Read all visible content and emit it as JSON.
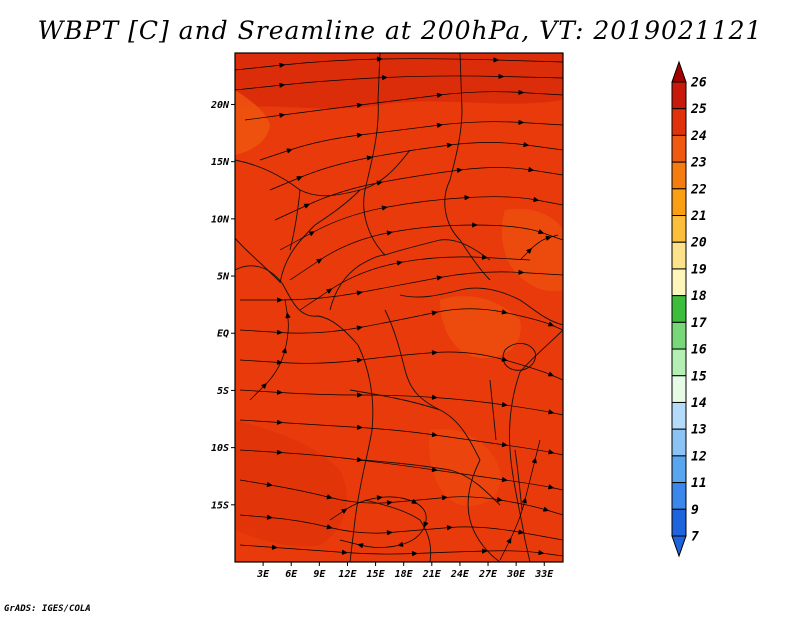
{
  "title": "WBPT [C] and Sreamline at 200hPa, VT: 2019021121",
  "credit": "GrADS: IGES/COLA",
  "map": {
    "lon_range": [
      0,
      35
    ],
    "lat_range": [
      -20,
      24.5
    ],
    "lat_ticks": [
      {
        "value": 20,
        "label": "20N"
      },
      {
        "value": 15,
        "label": "15N"
      },
      {
        "value": 10,
        "label": "10N"
      },
      {
        "value": 5,
        "label": "5N"
      },
      {
        "value": 0,
        "label": "EQ"
      },
      {
        "value": -5,
        "label": "5S"
      },
      {
        "value": -10,
        "label": "10S"
      },
      {
        "value": -15,
        "label": "15S"
      }
    ],
    "lon_ticks": [
      {
        "value": 3,
        "label": "3E"
      },
      {
        "value": 6,
        "label": "6E"
      },
      {
        "value": 9,
        "label": "9E"
      },
      {
        "value": 12,
        "label": "12E"
      },
      {
        "value": 15,
        "label": "15E"
      },
      {
        "value": 18,
        "label": "18E"
      },
      {
        "value": 21,
        "label": "21E"
      },
      {
        "value": 24,
        "label": "24E"
      },
      {
        "value": 27,
        "label": "27E"
      },
      {
        "value": 30,
        "label": "30E"
      },
      {
        "value": 33,
        "label": "33E"
      }
    ],
    "field_colors": {
      "dominant": "#e83a0a",
      "warmer": "#d72b0a",
      "cooler": "#f05a10"
    }
  },
  "colorbar": {
    "levels": [
      {
        "label": "26",
        "color": "#a50000"
      },
      {
        "label": "25",
        "color": "#c81a0a"
      },
      {
        "label": "24",
        "color": "#e0320a"
      },
      {
        "label": "23",
        "color": "#f05a10"
      },
      {
        "label": "22",
        "color": "#f57d0f"
      },
      {
        "label": "21",
        "color": "#fa9e14"
      },
      {
        "label": "20",
        "color": "#fcbf3c"
      },
      {
        "label": "19",
        "color": "#fde28c"
      },
      {
        "label": "18",
        "color": "#fdf6bc"
      },
      {
        "label": "17",
        "color": "#3cbe3c"
      },
      {
        "label": "16",
        "color": "#78d778"
      },
      {
        "label": "15",
        "color": "#b4f0b4"
      },
      {
        "label": "14",
        "color": "#e6fae6"
      },
      {
        "label": "13",
        "color": "#b4dcfa"
      },
      {
        "label": "12",
        "color": "#8cc3f5"
      },
      {
        "label": "11",
        "color": "#5aa5f0"
      },
      {
        "label": "9",
        "color": "#3c87eb"
      },
      {
        "label": "7",
        "color": "#1e64dc"
      }
    ]
  }
}
